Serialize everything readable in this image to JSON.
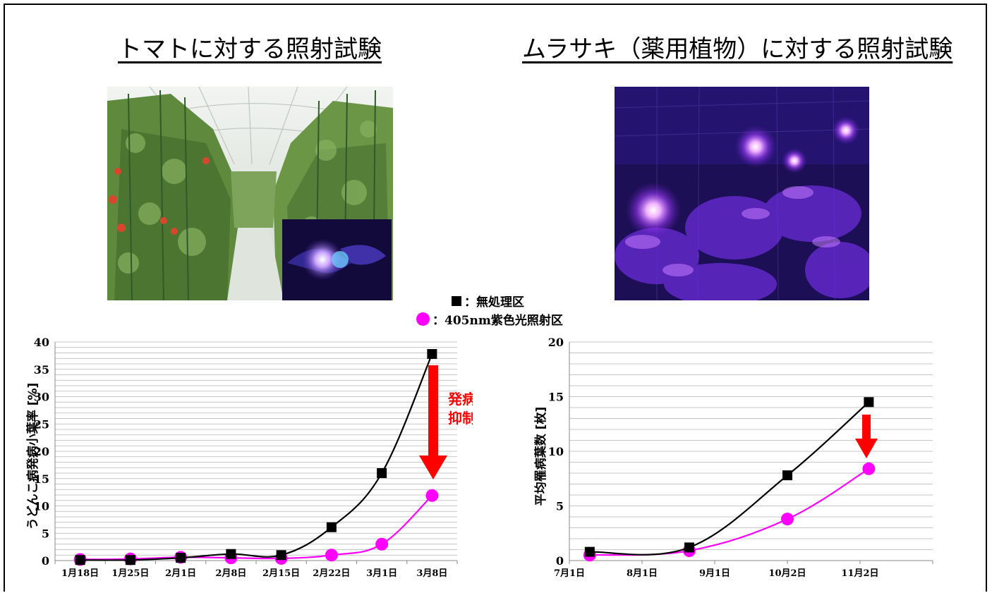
{
  "headings": {
    "left": "トマトに対する照射試験",
    "right": "ムラサキ（薬用植物）に対する照射試験"
  },
  "legend": {
    "control_label": "：無処理区",
    "treated_label": "：405nm紫色光照射区"
  },
  "colors": {
    "control": "#000000",
    "treated": "#ff00ff",
    "arrow": "#ff0000",
    "violet_light": "#7a3cff"
  },
  "annotation": {
    "line1": "発病",
    "line2": "抑制"
  },
  "chart_data": [
    {
      "type": "line",
      "ylabel": "うどんこ病発病小葉率 [%]",
      "xlabel": "",
      "ylim": [
        0,
        40
      ],
      "yticks": [
        "0",
        "5",
        "10",
        "15",
        "20",
        "25",
        "30",
        "35",
        "40"
      ],
      "categories": [
        "1月18日",
        "1月25日",
        "2月1日",
        "2月8日",
        "2月15日",
        "2月22日",
        "3月1日",
        "3月8日"
      ],
      "grid": true,
      "series": [
        {
          "name": "無処理区",
          "marker": "square",
          "values": [
            0.1,
            0.1,
            0.5,
            1.2,
            1.0,
            6.1,
            16.0,
            37.8
          ]
        },
        {
          "name": "405nm紫色光照射区",
          "marker": "circle",
          "values": [
            0.2,
            0.3,
            0.6,
            0.5,
            0.4,
            1.0,
            3.0,
            11.9
          ]
        }
      ]
    },
    {
      "type": "line",
      "ylabel": "平均罹病葉数 [枚]",
      "xlabel": "",
      "ylim": [
        0,
        20
      ],
      "yticks": [
        "0",
        "5",
        "10",
        "15",
        "20"
      ],
      "categories": [
        "7月1日",
        "8月1日",
        "9月1日",
        "10月2日",
        "11月2日"
      ],
      "grid": true,
      "series": [
        {
          "name": "無処理区",
          "marker": "square",
          "x": [
            0.28,
            1.65,
            3.0,
            4.12
          ],
          "values": [
            0.8,
            1.2,
            7.8,
            14.5
          ]
        },
        {
          "name": "405nm紫色光照射区",
          "marker": "circle",
          "x": [
            0.28,
            1.65,
            3.0,
            4.12
          ],
          "values": [
            0.5,
            0.9,
            3.8,
            8.4
          ]
        }
      ]
    }
  ]
}
